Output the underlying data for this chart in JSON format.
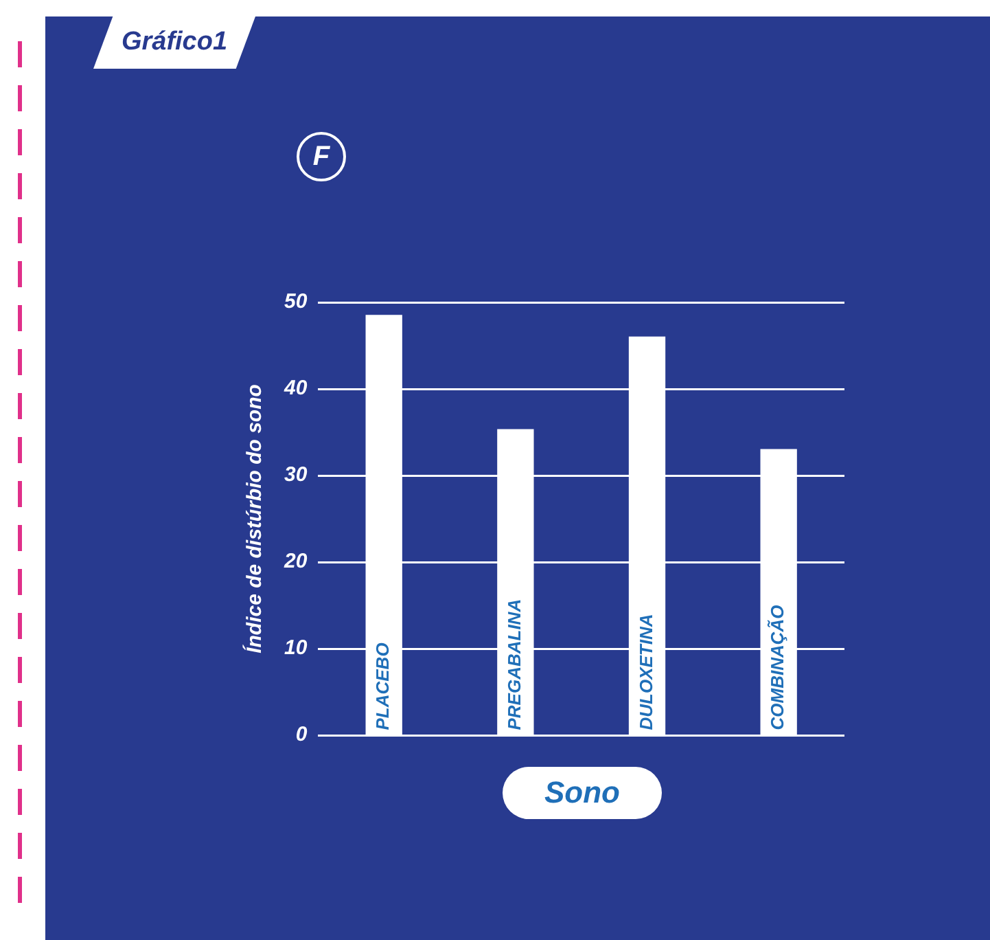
{
  "chart_data": {
    "type": "bar",
    "title": "Gráfico1",
    "subtitle": "F",
    "xlabel": "Sono",
    "ylabel": "Índice de distúrbio do sono",
    "categories": [
      "PLACEBO",
      "PREGABALINA",
      "DULOXETINA",
      "COMBINAÇÃO"
    ],
    "values": [
      48.5,
      35.3,
      46,
      33
    ],
    "color": "#ffffff",
    "ylim": [
      0,
      50
    ],
    "yticks": [
      0,
      10,
      20,
      30,
      40,
      50
    ],
    "grid": "y"
  }
}
